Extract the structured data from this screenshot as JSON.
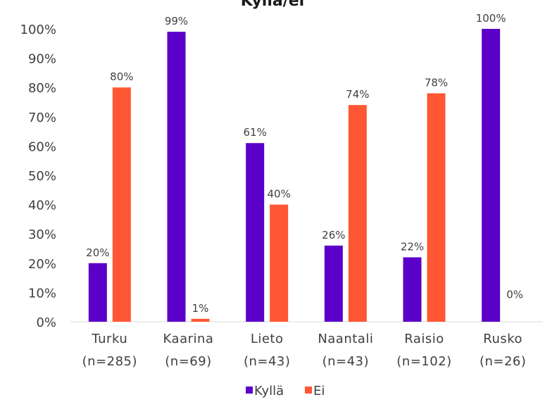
{
  "chart_data": {
    "type": "bar",
    "title": "Kyllä/ei",
    "categories": [
      [
        "Turku",
        "(n=285)"
      ],
      [
        "Kaarina",
        "(n=69)"
      ],
      [
        "Lieto",
        "(n=43)"
      ],
      [
        "Naantali",
        "(n=43)"
      ],
      [
        "Raisio",
        "(n=102)"
      ],
      [
        "Rusko",
        "(n=26)"
      ]
    ],
    "series": [
      {
        "name": "Kyllä",
        "color": "#5B00C8",
        "values": [
          20,
          99,
          61,
          26,
          22,
          100
        ],
        "labels": [
          "20%",
          "99%",
          "61%",
          "26%",
          "22%",
          "100%"
        ]
      },
      {
        "name": "Ei",
        "color": "#FF5733",
        "values": [
          80,
          1,
          40,
          74,
          78,
          0
        ],
        "labels": [
          "80%",
          "1%",
          "40%",
          "74%",
          "78%",
          "0%"
        ]
      }
    ],
    "ylim": [
      0,
      100
    ],
    "yticks": [
      "0%",
      "10%",
      "20%",
      "30%",
      "40%",
      "50%",
      "60%",
      "70%",
      "80%",
      "90%",
      "100%"
    ],
    "grid": false,
    "legend": "bottom"
  }
}
